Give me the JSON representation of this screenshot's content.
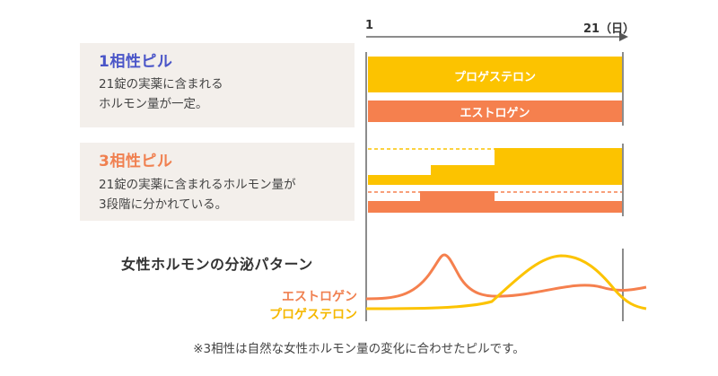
{
  "timeline": {
    "start_label": "1",
    "end_label": "21（日）"
  },
  "monophasic": {
    "title": "1相性ピル",
    "desc_lines": [
      "21錠の実薬に含まれる",
      "ホルモン量が一定。"
    ],
    "progesterone_label": "プロゲステロン",
    "estrogen_label": "エストロゲン",
    "color_title": "#4a55c8"
  },
  "triphasic": {
    "title": "3相性ピル",
    "desc_lines": [
      "21錠の実薬に含まれるホルモン量が",
      "3段階に分かれている。"
    ],
    "color_title": "#f08050"
  },
  "pattern": {
    "title": "女性ホルモンの分泌パターン",
    "legend_estrogen": "エストロゲン",
    "legend_progesterone": "プロゲステロン"
  },
  "footnote": "※3相性は自然な女性ホルモン量の変化に合わせたピルです。",
  "colors": {
    "progesterone": "#fcc300",
    "estrogen": "#f5804e",
    "panel_bg": "#f3efeb",
    "axis": "#555555"
  }
}
